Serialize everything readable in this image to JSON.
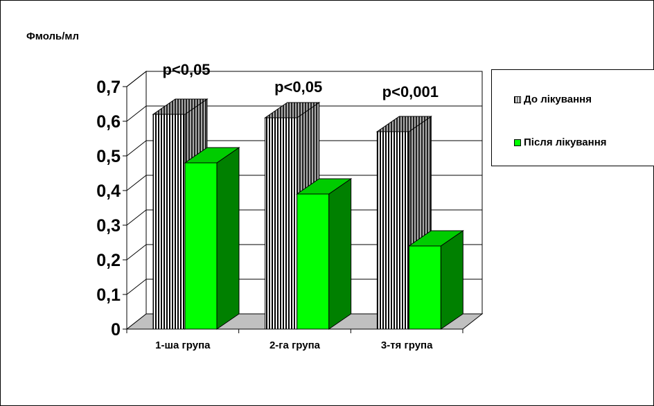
{
  "chart_data": {
    "type": "bar",
    "ylabel": "Фмоль/мл",
    "ylim": [
      0,
      0.7
    ],
    "yticks": [
      "0",
      "0,1",
      "0,2",
      "0,3",
      "0,4",
      "0,5",
      "0,6",
      "0,7"
    ],
    "categories": [
      "1-ша група",
      "2-га група",
      "3-тя група"
    ],
    "series": [
      {
        "name": "До лікування",
        "values": [
          0.62,
          0.61,
          0.57
        ],
        "pattern": "vertical-stripes"
      },
      {
        "name": "Після лікування",
        "values": [
          0.48,
          0.39,
          0.24
        ],
        "color": "#00ff00"
      }
    ],
    "annotations": [
      "p<0,05",
      "p<0,05",
      "p<0,001"
    ],
    "grid": true,
    "legend_position": "right"
  },
  "colors": {
    "after_front": "#00ff00",
    "after_top": "#00cc00",
    "after_side": "#008000",
    "before_side": "#555555",
    "floor": "#c0c0c0"
  }
}
